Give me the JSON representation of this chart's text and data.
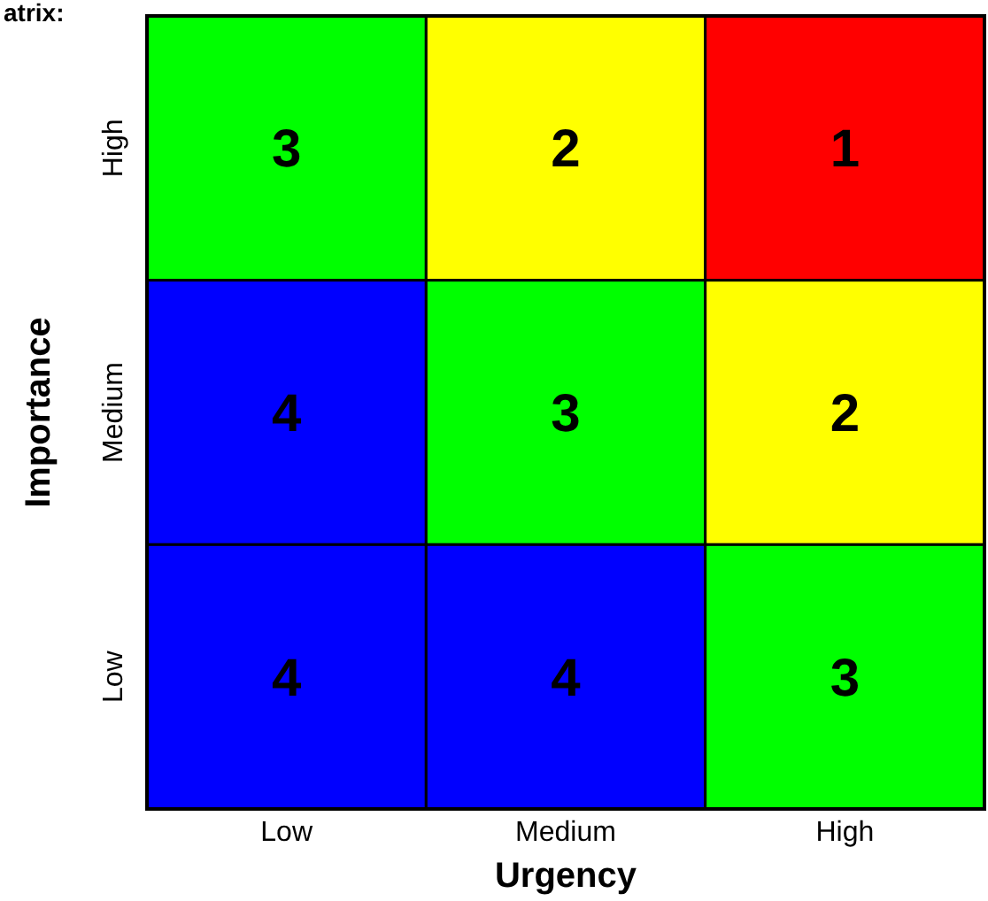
{
  "chart_data": {
    "type": "heatmap",
    "title": "atrix:",
    "xlabel": "Urgency",
    "ylabel": "Importance",
    "categories": [
      "Low",
      "Medium",
      "High"
    ],
    "y_categories": [
      "High",
      "Medium",
      "Low"
    ],
    "cells": [
      [
        3,
        2,
        1
      ],
      [
        4,
        3,
        2
      ],
      [
        4,
        4,
        3
      ]
    ],
    "colors": [
      "#00ff00",
      "#ffff00",
      "#ff0000",
      "#0000ff",
      "#00ff00",
      "#ffff00",
      "#0000ff",
      "#0000ff",
      "#00ff00"
    ],
    "data_labels": true
  }
}
